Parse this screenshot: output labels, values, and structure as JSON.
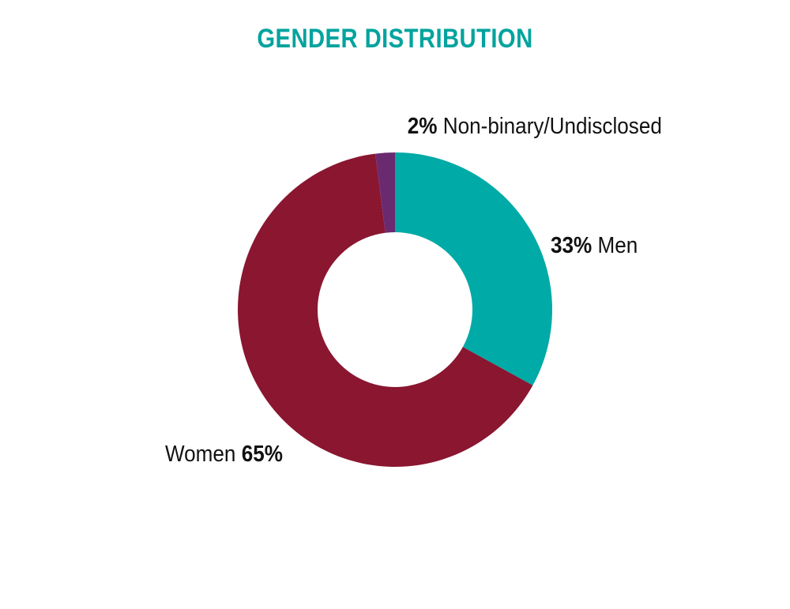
{
  "chart_data": {
    "type": "pie",
    "donut": true,
    "title": "GENDER DISTRIBUTION",
    "slices": [
      {
        "label": "Men",
        "value": 33,
        "percent_text": "33%",
        "color": "#00AAA6"
      },
      {
        "label": "Women",
        "value": 65,
        "percent_text": "65%",
        "color": "#8A1630"
      },
      {
        "label": "Non-binary/Undisclosed",
        "value": 2,
        "percent_text": "2%",
        "color": "#6B2A70"
      }
    ],
    "start": "12 o'clock, clockwise"
  },
  "colors": {
    "title": "#00A39E",
    "background": "#FFFFFF",
    "label_text": "#111111"
  }
}
